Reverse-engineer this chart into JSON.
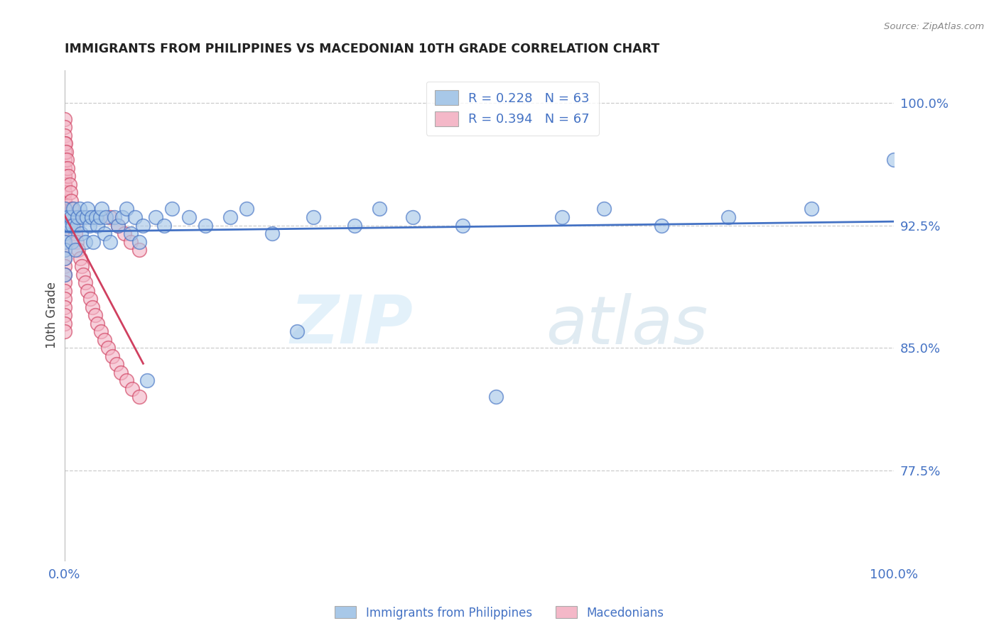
{
  "title": "IMMIGRANTS FROM PHILIPPINES VS MACEDONIAN 10TH GRADE CORRELATION CHART",
  "source": "Source: ZipAtlas.com",
  "ylabel": "10th Grade",
  "ylabel_right_labels": [
    "100.0%",
    "92.5%",
    "85.0%",
    "77.5%"
  ],
  "ylabel_right_values": [
    1.0,
    0.925,
    0.85,
    0.775
  ],
  "xlim": [
    0.0,
    1.0
  ],
  "ylim": [
    0.72,
    1.02
  ],
  "legend1_label": "R = 0.228   N = 63",
  "legend2_label": "R = 0.394   N = 67",
  "legend1_color": "#a8c8e8",
  "legend2_color": "#f4b8c8",
  "scatter1_color": "#a8c8e8",
  "scatter2_color": "#f4b8c8",
  "line1_color": "#4472c4",
  "line2_color": "#d04060",
  "watermark_zip": "ZIP",
  "watermark_atlas": "atlas",
  "title_color": "#222222",
  "axis_label_color": "#4472c4",
  "grid_color": "#cccccc",
  "philippines_x": [
    0.0,
    0.0,
    0.0,
    0.0,
    0.0,
    0.0,
    0.0,
    0.0,
    0.005,
    0.007,
    0.008,
    0.009,
    0.01,
    0.011,
    0.013,
    0.015,
    0.016,
    0.018,
    0.02,
    0.022,
    0.025,
    0.027,
    0.028,
    0.03,
    0.033,
    0.035,
    0.038,
    0.04,
    0.043,
    0.045,
    0.048,
    0.05,
    0.055,
    0.06,
    0.065,
    0.07,
    0.075,
    0.08,
    0.085,
    0.09,
    0.095,
    0.1,
    0.11,
    0.12,
    0.13,
    0.15,
    0.17,
    0.2,
    0.22,
    0.25,
    0.28,
    0.3,
    0.35,
    0.38,
    0.42,
    0.48,
    0.52,
    0.6,
    0.65,
    0.72,
    0.8,
    0.9,
    1.0
  ],
  "philippines_y": [
    0.93,
    0.935,
    0.925,
    0.92,
    0.915,
    0.91,
    0.905,
    0.895,
    0.93,
    0.925,
    0.93,
    0.915,
    0.925,
    0.935,
    0.91,
    0.925,
    0.93,
    0.935,
    0.92,
    0.93,
    0.915,
    0.93,
    0.935,
    0.925,
    0.93,
    0.915,
    0.93,
    0.925,
    0.93,
    0.935,
    0.92,
    0.93,
    0.915,
    0.93,
    0.925,
    0.93,
    0.935,
    0.92,
    0.93,
    0.915,
    0.925,
    0.83,
    0.93,
    0.925,
    0.935,
    0.93,
    0.925,
    0.93,
    0.935,
    0.92,
    0.86,
    0.93,
    0.925,
    0.935,
    0.93,
    0.925,
    0.82,
    0.93,
    0.935,
    0.925,
    0.93,
    0.935,
    0.965
  ],
  "macedonian_x": [
    0.0,
    0.0,
    0.0,
    0.0,
    0.0,
    0.0,
    0.0,
    0.0,
    0.0,
    0.0,
    0.0,
    0.0,
    0.0,
    0.0,
    0.0,
    0.0,
    0.0,
    0.0,
    0.0,
    0.0,
    0.0,
    0.0,
    0.0,
    0.0,
    0.0,
    0.0,
    0.0,
    0.0,
    0.0,
    0.0,
    0.001,
    0.002,
    0.003,
    0.004,
    0.005,
    0.006,
    0.007,
    0.008,
    0.009,
    0.01,
    0.011,
    0.013,
    0.015,
    0.017,
    0.019,
    0.021,
    0.023,
    0.025,
    0.028,
    0.031,
    0.034,
    0.037,
    0.04,
    0.044,
    0.048,
    0.053,
    0.058,
    0.063,
    0.068,
    0.075,
    0.082,
    0.09,
    0.055,
    0.065,
    0.072,
    0.08,
    0.09
  ],
  "macedonian_y": [
    0.99,
    0.985,
    0.98,
    0.975,
    0.97,
    0.965,
    0.96,
    0.955,
    0.95,
    0.945,
    0.94,
    0.935,
    0.93,
    0.925,
    0.92,
    0.915,
    0.91,
    0.905,
    0.9,
    0.895,
    0.89,
    0.885,
    0.88,
    0.875,
    0.87,
    0.865,
    0.86,
    0.955,
    0.95,
    0.945,
    0.975,
    0.97,
    0.965,
    0.96,
    0.955,
    0.95,
    0.945,
    0.94,
    0.935,
    0.93,
    0.925,
    0.92,
    0.915,
    0.91,
    0.905,
    0.9,
    0.895,
    0.89,
    0.885,
    0.88,
    0.875,
    0.87,
    0.865,
    0.86,
    0.855,
    0.85,
    0.845,
    0.84,
    0.835,
    0.83,
    0.825,
    0.82,
    0.93,
    0.925,
    0.92,
    0.915,
    0.91
  ]
}
